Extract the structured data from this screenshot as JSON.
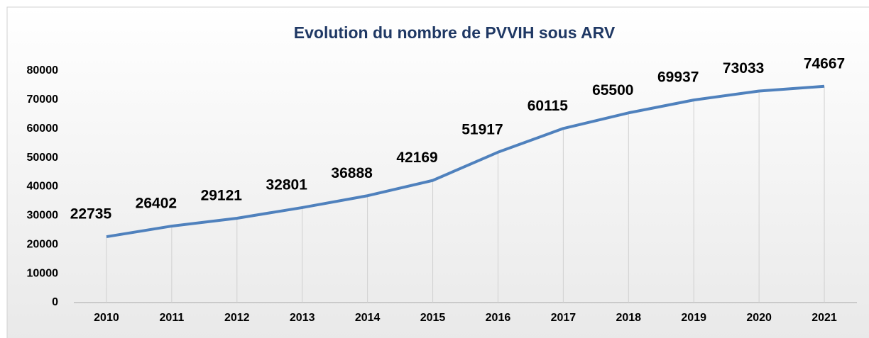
{
  "chart_data": {
    "type": "line",
    "title": "Evolution du nombre de PVVIH sous ARV",
    "categories": [
      "2010",
      "2011",
      "2012",
      "2013",
      "2014",
      "2015",
      "2016",
      "2017",
      "2018",
      "2019",
      "2020",
      "2021"
    ],
    "values": [
      22735,
      26402,
      29121,
      32801,
      36888,
      42169,
      51917,
      60115,
      65500,
      69937,
      73033,
      74667
    ],
    "color": "#4f81bd",
    "ylim": [
      0,
      80000
    ],
    "yticks": [
      0,
      10000,
      20000,
      30000,
      40000,
      50000,
      60000,
      70000,
      80000
    ],
    "drop_lines": true
  }
}
